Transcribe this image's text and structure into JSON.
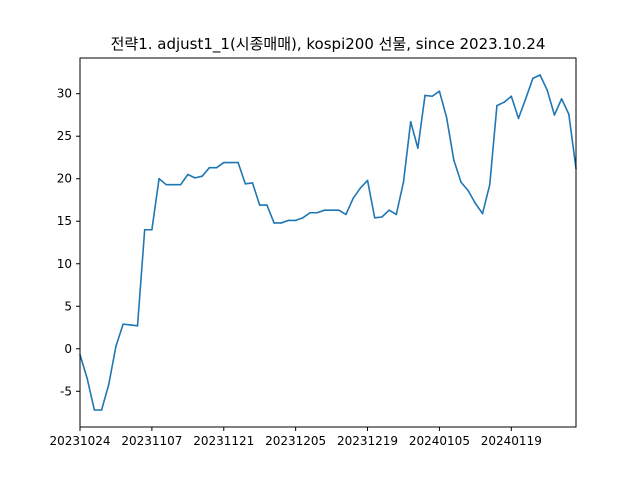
{
  "chart_data": {
    "type": "line",
    "title": "전략1. adjust1_1(시종매매), kospi200 선물, since 2023.10.24",
    "xlabel": "",
    "ylabel": "",
    "x_ticks": [
      "20231024",
      "20231107",
      "20231121",
      "20231205",
      "20231219",
      "20240105",
      "20240119"
    ],
    "y_ticks": [
      -5,
      0,
      5,
      10,
      15,
      20,
      25,
      30
    ],
    "ylim": [
      -9.2,
      34.2
    ],
    "grid": false,
    "color": "#1f77b4",
    "series": [
      {
        "values": [
          -0.7,
          -3.5,
          -7.2,
          -7.2,
          -4.2,
          0.3,
          2.9,
          2.8,
          2.7,
          14.0,
          14.0,
          20.0,
          19.3,
          19.3,
          19.3,
          20.5,
          20.1,
          20.3,
          21.3,
          21.3,
          21.9,
          21.9,
          21.9,
          19.4,
          19.5,
          16.9,
          16.9,
          14.8,
          14.8,
          15.1,
          15.1,
          15.4,
          16.0,
          16.0,
          16.3,
          16.3,
          16.3,
          15.8,
          17.7,
          18.9,
          19.8,
          15.4,
          15.5,
          16.3,
          15.8,
          19.6,
          26.7,
          23.6,
          29.8,
          29.7,
          30.3,
          27.2,
          22.2,
          19.6,
          18.6,
          17.1,
          15.9,
          19.3,
          28.6,
          29.0,
          29.7,
          27.1,
          29.4,
          31.8,
          32.2,
          30.4,
          27.5,
          29.4,
          27.6,
          21.2
        ]
      }
    ]
  }
}
